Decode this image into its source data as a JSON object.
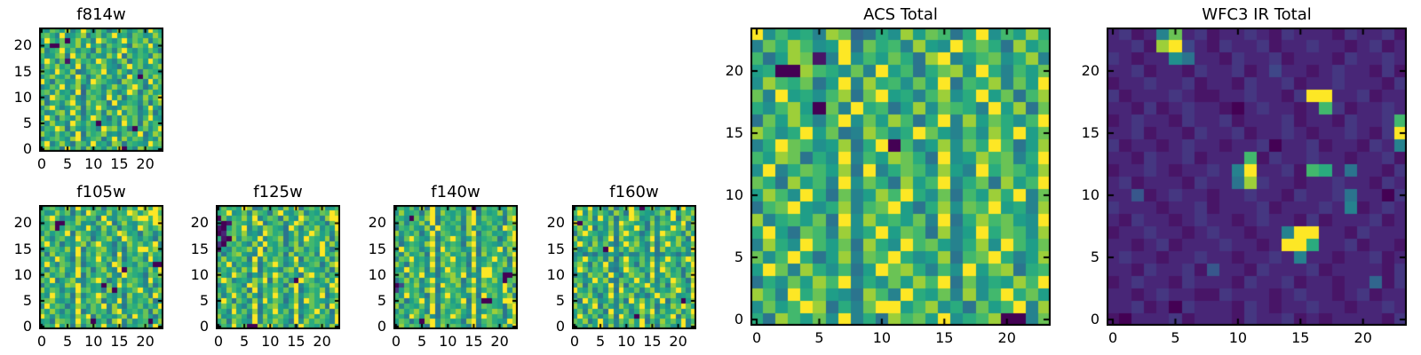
{
  "figure": {
    "background": "#ffffff",
    "border_color": "#000000",
    "tick_color": "#000000"
  },
  "palette": [
    "#440154",
    "#481567",
    "#482677",
    "#453781",
    "#3f4788",
    "#38578c",
    "#31668e",
    "#2b748e",
    "#26828e",
    "#21908d",
    "#1f9e88",
    "#2aab7e",
    "#42b86d",
    "#6ac355",
    "#9dcf39",
    "#fde725"
  ],
  "chart_data": [
    {
      "type": "heatmap",
      "id": "f814w",
      "title": "f814w",
      "colormap": "viridis",
      "x_ticks": [
        0,
        5,
        10,
        15,
        20
      ],
      "y_ticks": [
        0,
        5,
        10,
        15,
        20
      ],
      "x_range": [
        -0.5,
        23.5
      ],
      "y_range": [
        -0.5,
        23.5
      ],
      "grid": false,
      "rows_order": "top-to-bottom",
      "value_scale": "hex 0-f maps to palette index",
      "rows": [
        "b9dcae8bfc9db7aec9bd8fca",
        "cdb8f9ace7bd9cfab8dc9aeb",
        "9fcad0beac8fdb9cfadbe8cd",
        "ab00dcbe9fac8dbca7edbf9c",
        "e8bcfad9cb7eac8dfb9cadb7",
        "c9ade7fbd8ca9ebf7dacb8ed",
        "bfc8d1aebc9fda8ce7bdafc9",
        "7dbeac9f8dcbea97cfbd9ace",
        "db9fcae78bdcf9aeb8c7dcba",
        "9cebad8fc7bead9c8fb0daec",
        "fb7dc9aeb8fdca97edbc8fad",
        "8adbf9ce7adc8beb9dfc7aeb",
        "cd9eab8f6dbc9ea8bfd7ceab",
        "b8fdcae97cdb8fae7bc9eadf",
        "e7bc9dfa8ebdc7f9acb8d7ce",
        "9dfb8ace7dbfc98aedc7bfa8",
        "c8ade9fb7cad8ebf9dc8ae7b",
        "afc7db9e8bfda7c9ebd8cfa9",
        "d9eab8fcadb0a9c8fbd7eacb",
        "8cbfe7da9cb8fdeac70bd9cf",
        "eb9dac8f7dbce9a8cdbf7aec",
        "7acdb9ef8acd7bf9eadc8b9e",
        "cf8bea7dc9fab8ed7cba9fcd",
        "9ebc7fad8ebc9daf0b8edcab"
      ]
    },
    {
      "type": "heatmap",
      "id": "f105w",
      "title": "f105w",
      "colormap": "viridis",
      "x_ticks": [
        0,
        5,
        10,
        15,
        20
      ],
      "y_ticks": [
        0,
        5,
        10,
        15,
        20
      ],
      "x_range": [
        -0.5,
        23.5
      ],
      "y_range": [
        -0.5,
        23.5
      ],
      "grid": false,
      "rows_order": "top-to-bottom",
      "value_scale": "hex 0-f maps to palette index",
      "rows": [
        "acdb9e8fbcad7cbe9dafebfe",
        "c9aebd7c8fdbae9cbfeadffc",
        "bdfc8a9edbc7fa9dcbeffcfe",
        "abd00cbe9a8dcf7bea9cdbff",
        "cbe0adca9fb8ead7cb9fdace",
        "9dacbf7ecb8ad9cfeab7dc8b",
        "eb8cda9fcd7bcea8fdb9ca7d",
        "cfad7b9ce8dfba7c9ebdacf8",
        "8bdcae9f7cbdea8c7dbffcea",
        "d7eacb8f9daecb7f8cad9ebc",
        "bc9fda7e8cbfad9e7bdc8fab",
        "afb8dc9e7abdc8feab9dca00",
        "c8dbea9fbd7cea8f0dbc9eaf",
        "9eacd8bf7dacbe98fcba7dce",
        "dbf7ace98bdfc7ae9cdb8fac",
        "7cab9edf8cab0d9fbeca8d7b",
        "eadc8b9fcdab7e0c9bdfa8ce",
        "b9fcad7e8bcfda9c7eabd8fc",
        "cdea9b8fadce7b9f8dacbe7a",
        "8fbdc7aec9dbf8ea7cbd9caf",
        "daeb8c9f7adbc8ef9bcad7eb",
        "fc9dab8ecf7dab9ce8fbda7c",
        "ab7edc9fbd0ac7ef8d9bc0ae",
        "9cbfad7e8cdbfa9e7bacd8fb"
      ]
    },
    {
      "type": "heatmap",
      "id": "f125w",
      "title": "f125w",
      "colormap": "viridis",
      "x_ticks": [
        0,
        5,
        10,
        15,
        20
      ],
      "y_ticks": [
        0,
        5,
        10,
        15,
        20
      ],
      "x_range": [
        -0.5,
        23.5
      ],
      "y_range": [
        -0.5,
        23.5
      ],
      "grid": false,
      "rows_order": "top-to-bottom",
      "value_scale": "hex 0-f maps to palette index",
      "rows": [
        "9dbcafe78dbc9eaf7cdbe9ac",
        "bcf9ad8ecb7dfa9ce8badcfe",
        "0d9cbeaf8bdc7ea9fdbc8eff",
        "a01dcb9ef7acd8bfe9cab7df",
        "10adbf8c9edba7fc8dbe9caf",
        "02cdbe9a8fdbc7ae9bfdac8e",
        "b10e9dcaf8bce7ad9fcbae7d",
        "30cbda8e9fbad7ce8dcbf9ea",
        "1a8dbce9f7dacb8ed9cafb7c",
        "c7bdea98fcbad7e9cbd8face",
        "9eacbd7f8eadc9bf7dbcae8d",
        "dbf8ca9e7bdfc8ae9acd7bef",
        "8cad9ebf7cab8de9fcba9d7e",
        "eb9fdc7a8ebfd9ca7efbd8ca",
        "cfd8ab9ecf7ead80fdc9beaf",
        "7adcb8fe9dacb7ef8bdca9fe",
        "b9ecad7f8cbead9f7acbe8df",
        "d8bfc9ea7dbfc8ae9cdbf7ac",
        "afc7db8e9fadc7be8fdba9ce",
        "9dbea8cf7bdea9cf8adbe7fc",
        "cb8fad9e7cbfad8e9bcfad7e",
        "e9acdb7f8eacdb9f7ceadb8f",
        "bd7eca9f8dbeca7f9ebdca8f",
        "8cafbd00ebfad8c7fcbad9ea"
      ]
    },
    {
      "type": "heatmap",
      "id": "f140w",
      "title": "f140w",
      "colormap": "viridis",
      "x_ticks": [
        0,
        5,
        10,
        15,
        20
      ],
      "y_ticks": [
        0,
        5,
        10,
        15,
        20
      ],
      "x_range": [
        -0.5,
        23.5
      ],
      "y_range": [
        -0.5,
        23.5
      ],
      "grid": false,
      "rows_order": "top-to-bottom",
      "value_scale": "hex 0-f maps to palette index",
      "rows": [
        "bcad9e7f8cbda9e07dbc9aec",
        "9eabc7df8ebac9df7cabe8dc",
        "cb90daef7bcad8ef9dcba7ef",
        "ad8cbe9f7dacb8ef9bdac7ce",
        "7cbda9e8fcbad7e9cabd8fec",
        "e9cad7bf8dcab9ef7cdab9cf",
        "b8dfca9e7bdfc8ae9bcd7aef",
        "d7acb9ef8dacb7ef8cba9dce",
        "9fbdc8ae7fbdc9ae7dbcf8ea",
        "c8eabd7f9ceabd8f7eacb9df",
        "8dcfab9e7dcfab8e9acfbd7e",
        "eb7dac9f8ebdac7f9bdace8f",
        "a9fcbd8e7afcbd9e8ffbd9ae",
        "cd8ebf9a7cdebf8a9ffcb00d",
        "7bead8cf9abed7cf8dbea0cd",
        "04cbe9ad7fcbe8ad9ecbafd7",
        "3adbc8ef7adcb9ef8bdcaf9e",
        "c9fbda7e8cfbda9e7fbdace8",
        "bd7acf9e8bdacf7e900baffe",
        "e8cbad9f7ecbad8f9dcba7ef",
        "9daceb8f7daceb9f8aced7bf",
        "cb8fdae97cbfda8e9fdbc7ae",
        "adc7b0ef9dcab7ef8cdba9fe",
        "8ebdca7f9ebdca8f7bdcae9f"
      ]
    },
    {
      "type": "heatmap",
      "id": "f160w",
      "title": "f160w",
      "colormap": "viridis",
      "x_ticks": [
        0,
        5,
        10,
        15,
        20
      ],
      "y_ticks": [
        0,
        5,
        10,
        15,
        20
      ],
      "x_range": [
        -0.5,
        23.5
      ],
      "y_range": [
        -0.5,
        23.5
      ],
      "grid": false,
      "rows_order": "top-to-bottom",
      "value_scale": "hex 0-f maps to palette index",
      "rows": [
        "adbf9c8e7bdfa0be9cdb8fac",
        "cf9eadb8ec7fdba9ce8fadbe",
        "9cbe8fad7cbfe9ad8cbf7dea",
        "f0dcab9e8fdcab7e9dcabf8e",
        "beaf7c9d8ebafc7d9bafce8d",
        "7dfcb9ae8dfcb7ae9fdcb8ea",
        "e9bad8cf7ebad9cf8dbaec7f",
        "bfc8ead97bfcea8d7cfbe9ad",
        "d8aecb0f9daecb8f7eacbd9f",
        "8a797b8a97b88c9a78b97a8c",
        "9cfbad8e7cfbad9e8bfcadfe",
        "ceb7daf98ceb7daf9ebc8daf",
        "afd9cbe87afdc9be8fdac7be",
        "7b8ecd9fa7becd8f9aebc7df",
        "dc9afbe87dcafb9e8cafdb7e",
        "9e7dbcaf8e7dbcfa9d7ecbaf",
        "fbad8c9e7fbad8ce9badfc8e",
        "8dcea7bf9dce8a7bfcde9abf",
        "c7fbe9ad8c7fbead9f7cb0ae",
        "eb9cf7da8eb9cfad7b9ecfda",
        "ad8ebc7f9ad8becf8dabe9cf",
        "9fcad8be7fca0d8ebacf7dbe",
        "dbe7af9c8dbeaf7c9ebdaf8c",
        "bc9daf7e8c9dafbe7dc9af8e"
      ]
    },
    {
      "type": "heatmap",
      "id": "acs_total",
      "title": "ACS Total",
      "colormap": "viridis",
      "x_ticks": [
        0,
        5,
        10,
        15,
        20
      ],
      "y_ticks": [
        0,
        5,
        10,
        15,
        20
      ],
      "x_range": [
        -0.5,
        23.5
      ],
      "y_range": [
        -0.5,
        23.5
      ],
      "grid": false,
      "rows_order": "top-to-bottom",
      "value_scale": "hex 0-f maps to palette index",
      "rows": [
        "f9cab8ed67b9eadc7bf9caeb",
        "8dbec9af7dbc8ea9fcdb7eac",
        "c7aed18f9cadb7ef8acd9be8",
        "ab00ecb9d8fac7bde9fb8cad",
        "9ecbd7af8ebc9daf7cbe8daf",
        "d8fab9ce7dfab8ce9bfad7ce",
        "b9cea0d8fbc7ae9dcb8fae7d",
        "7daeb8cf9daec7bf8eadb9cf",
        "ec9bfad78ec9bfda8c9ebfad",
        "8bfdc9ae7bf0c8ae9dbfc7ae",
        "caed7b9f8caedb7f9aecd8bf",
        "9f8bdcae7f8bdc9ea8fbdcae",
        "db7eac8f9db7eacf8bd7eacf",
        "aec9fb7d8aecfb9d7caebf8d",
        "7cdfa9be8cdfa7be9dcfab8e",
        "e8bcad7f9ebcad8f7becda9f",
        "bfa7dc8e9bfadc7e8afbdc9e",
        "8eb9fcad7eb9fcda8be9fcad",
        "d9cfb7ae8dcfb9ae7cdfb8ae",
        "afd8eb9c7afdeb8c9fade7bc",
        "7b9daecf8b9daecf7d9baecf",
        "ec8fbda97ec8fbad8e9cfbda",
        "9dacfe7b8dfface9b7dacf8e",
        "b7ecad9f8b7ecdaf9bce008d"
      ]
    },
    {
      "type": "heatmap",
      "id": "wfc3_ir_total",
      "title": "WFC3 IR Total",
      "colormap": "viridis",
      "x_ticks": [
        0,
        5,
        10,
        15,
        20
      ],
      "y_ticks": [
        0,
        5,
        10,
        15,
        20
      ],
      "x_range": [
        -0.5,
        23.5
      ],
      "y_range": [
        -0.5,
        23.5
      ],
      "grid": false,
      "rows_order": "top-to-bottom",
      "value_scale": "hex 0-f maps to palette index",
      "rows": [
        "23128d231223213222132231",
        "2231ef421322312232212312",
        "321229722132231222132232",
        "223122132231242212322131",
        "122322312213223122322213",
        "3122232112232213ff223122",
        "22131232210232212c312232",
        "12322132231222312213223c",
        "22312213223122321223213f",
        "312212322122302231221328",
        "22132231222c132232212231",
        "12232122328f2231cb272213",
        "23122213227e322122322132",
        "225123221223221322372203",
        "322212231222312223281232",
        "213221232212322131222312",
        "122322123221228ff2213222",
        "22123122232212ffb2231221",
        "232212232212232822122312",
        "221322315221322231222213",
        "123221322213223122122613",
        "221232211322212322123122",
        "223120322213212232212232",
        "102223122213223121222213"
      ]
    }
  ]
}
